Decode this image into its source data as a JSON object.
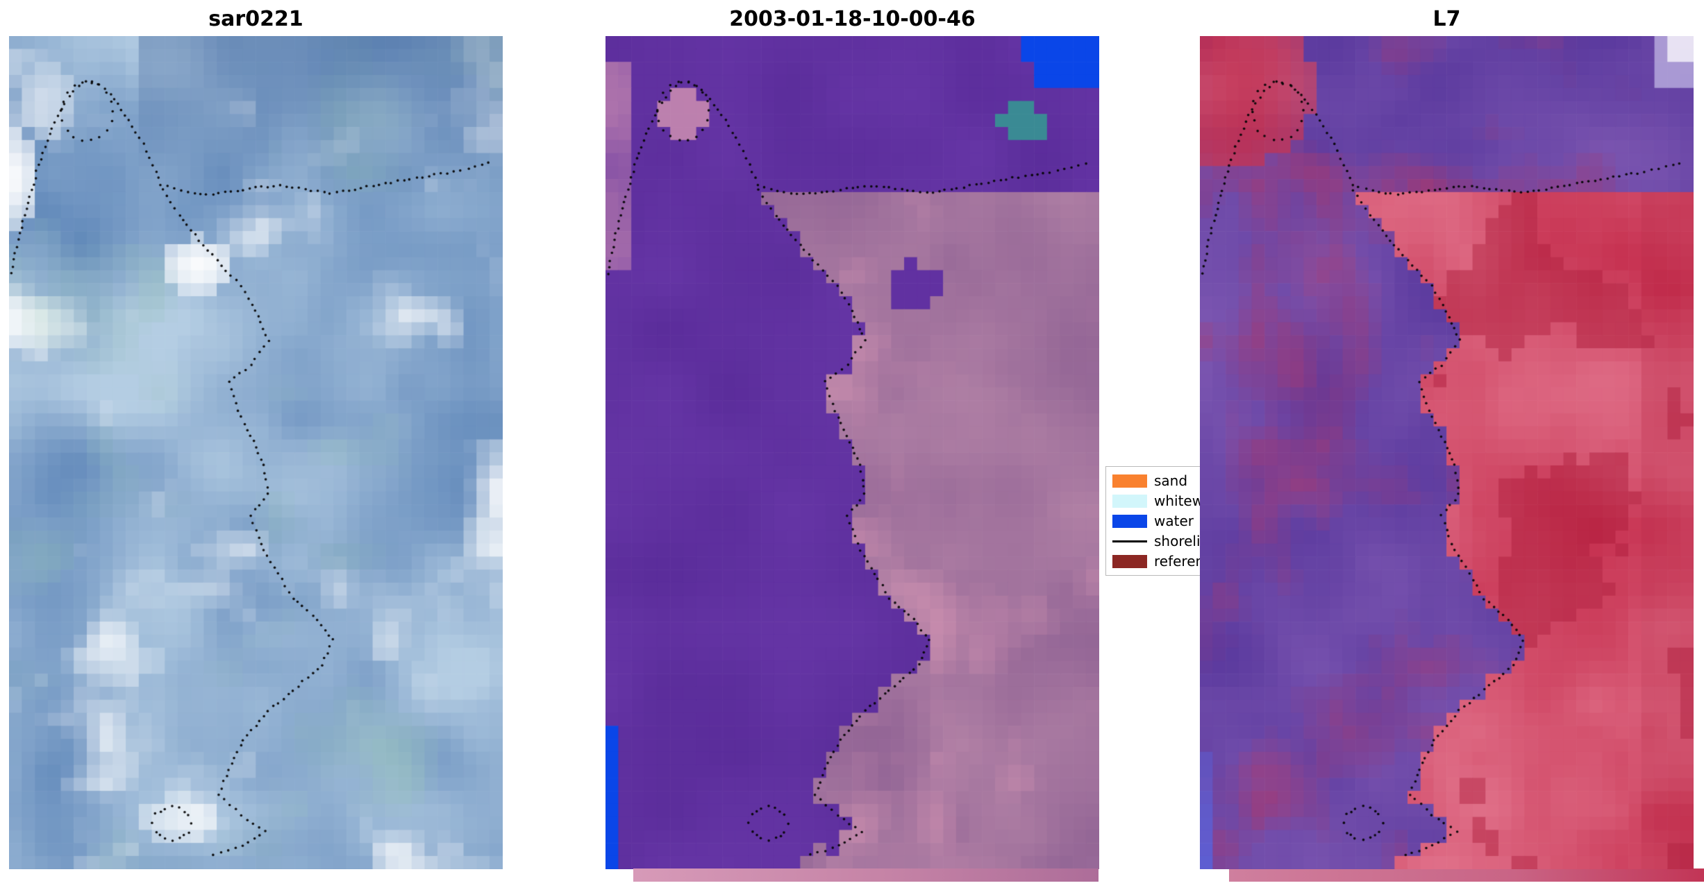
{
  "figure": {
    "background": "#ffffff",
    "panels": [
      {
        "id": "sar",
        "title": "sar0221",
        "type": "sar",
        "seed": 11,
        "palette": {
          "base_dark": "#4e79b1",
          "base_light": "#b4cde3",
          "white": "#ffffff",
          "teal": "#8fc0ae",
          "top_shade": "#44689e"
        },
        "white_blobs": [
          [
            0.01,
            0.17,
            0.055,
            0.06,
            0.95
          ],
          [
            0.08,
            0.08,
            0.05,
            0.045,
            0.6
          ],
          [
            0.385,
            0.275,
            0.075,
            0.033,
            0.95
          ],
          [
            0.35,
            0.94,
            0.08,
            0.027,
            0.7
          ],
          [
            0.22,
            0.75,
            0.09,
            0.03,
            0.35
          ]
        ]
      },
      {
        "id": "classified",
        "title": "2003-01-18-10-00-46",
        "type": "classified",
        "seed": 23,
        "palette": {
          "purple_dark": "#5b2d9b",
          "purple_light": "#6f3daf",
          "mauve_dark": "#8c5f92",
          "mauve_light": "#b282a6",
          "pink": "#d494b2",
          "blue": "#0a46e8",
          "teal": "#3a8a94"
        },
        "features": {
          "teal_patch": [
            0.85,
            0.105,
            0.055,
            0.022
          ],
          "pink_loop_blob": [
            0.158,
            0.09,
            0.045,
            0.03
          ],
          "purple_island": [
            0.625,
            0.3,
            0.055,
            0.028
          ],
          "pink_bottom_blob": [
            0.33,
            0.945,
            0.038,
            0.018
          ]
        }
      },
      {
        "id": "l7",
        "title": "L7",
        "type": "l7",
        "seed": 37,
        "palette": {
          "purple_dark": "#53339a",
          "purple_light": "#7e58b2",
          "red_mottle": "#a63a72",
          "red_dark": "#c32848",
          "red_light": "#e2748d",
          "red_deep": "#ad1d3c",
          "red_blob": "#c2203d",
          "lavender": "#c6bee9",
          "white": "#f3eff9",
          "blue": "#5a62da"
        },
        "features": {
          "red_blob_ellipse": [
            0.07,
            0.06,
            0.16,
            0.1
          ]
        }
      }
    ],
    "legend": {
      "entries": [
        {
          "label": "sand",
          "color": "#f9812f",
          "type": "patch"
        },
        {
          "label": "whitew",
          "color": "#d2f6fb",
          "type": "patch"
        },
        {
          "label": "water",
          "color": "#0a46e8",
          "type": "patch"
        },
        {
          "label": "shoreli",
          "color": "#000000",
          "type": "line"
        },
        {
          "label": "referen",
          "color": "#8c2723",
          "type": "patch"
        }
      ]
    },
    "strips": {
      "middle": {
        "from": "#d79ab8",
        "mid": "#c583a6",
        "to": "#ad6d99"
      },
      "right": {
        "from": "#cf7f9e",
        "mid": "#c96485",
        "to": "#c23556"
      }
    },
    "shoreline": {
      "lines": {
        "coast": [
          [
            0.005,
            0.285
          ],
          [
            0.018,
            0.245
          ],
          [
            0.038,
            0.2
          ],
          [
            0.06,
            0.155
          ],
          [
            0.082,
            0.118
          ],
          [
            0.105,
            0.088
          ],
          [
            0.13,
            0.066
          ],
          [
            0.155,
            0.055
          ],
          [
            0.182,
            0.058
          ],
          [
            0.205,
            0.07
          ],
          [
            0.228,
            0.088
          ],
          [
            0.25,
            0.108
          ],
          [
            0.272,
            0.13
          ],
          [
            0.292,
            0.155
          ],
          [
            0.308,
            0.178
          ]
        ],
        "loop": [
          [
            0.21,
            0.09
          ],
          [
            0.207,
            0.102
          ],
          [
            0.198,
            0.113
          ],
          [
            0.184,
            0.121
          ],
          [
            0.167,
            0.125
          ],
          [
            0.149,
            0.125
          ],
          [
            0.132,
            0.121
          ],
          [
            0.118,
            0.113
          ],
          [
            0.109,
            0.102
          ],
          [
            0.106,
            0.09
          ],
          [
            0.109,
            0.078
          ],
          [
            0.118,
            0.067
          ],
          [
            0.132,
            0.059
          ],
          [
            0.149,
            0.055
          ],
          [
            0.167,
            0.055
          ],
          [
            0.184,
            0.059
          ],
          [
            0.198,
            0.067
          ],
          [
            0.207,
            0.078
          ],
          [
            0.21,
            0.09
          ]
        ],
        "horizontal": [
          [
            0.308,
            0.178
          ],
          [
            0.35,
            0.186
          ],
          [
            0.4,
            0.19
          ],
          [
            0.45,
            0.187
          ],
          [
            0.5,
            0.182
          ],
          [
            0.55,
            0.18
          ],
          [
            0.6,
            0.184
          ],
          [
            0.65,
            0.188
          ],
          [
            0.7,
            0.184
          ],
          [
            0.75,
            0.178
          ],
          [
            0.8,
            0.173
          ],
          [
            0.85,
            0.168
          ],
          [
            0.9,
            0.163
          ],
          [
            0.945,
            0.157
          ],
          [
            0.985,
            0.15
          ]
        ],
        "main": [
          [
            0.31,
            0.185
          ],
          [
            0.345,
            0.215
          ],
          [
            0.385,
            0.245
          ],
          [
            0.43,
            0.275
          ],
          [
            0.47,
            0.3
          ],
          [
            0.5,
            0.33
          ],
          [
            0.525,
            0.365
          ],
          [
            0.49,
            0.395
          ],
          [
            0.445,
            0.415
          ],
          [
            0.465,
            0.45
          ],
          [
            0.49,
            0.48
          ],
          [
            0.515,
            0.515
          ],
          [
            0.525,
            0.55
          ],
          [
            0.49,
            0.575
          ],
          [
            0.51,
            0.61
          ],
          [
            0.545,
            0.645
          ],
          [
            0.575,
            0.675
          ],
          [
            0.625,
            0.7
          ],
          [
            0.655,
            0.725
          ],
          [
            0.635,
            0.755
          ],
          [
            0.585,
            0.78
          ],
          [
            0.525,
            0.81
          ],
          [
            0.475,
            0.845
          ],
          [
            0.445,
            0.88
          ],
          [
            0.425,
            0.91
          ],
          [
            0.47,
            0.935
          ],
          [
            0.52,
            0.955
          ],
          [
            0.46,
            0.975
          ],
          [
            0.4,
            0.985
          ]
        ],
        "bottom_loop": [
          [
            0.37,
            0.945
          ],
          [
            0.363,
            0.956
          ],
          [
            0.345,
            0.963
          ],
          [
            0.33,
            0.965
          ],
          [
            0.315,
            0.963
          ],
          [
            0.297,
            0.956
          ],
          [
            0.29,
            0.945
          ],
          [
            0.297,
            0.934
          ],
          [
            0.315,
            0.927
          ],
          [
            0.33,
            0.925
          ],
          [
            0.345,
            0.927
          ],
          [
            0.363,
            0.934
          ],
          [
            0.37,
            0.945
          ]
        ]
      }
    }
  }
}
